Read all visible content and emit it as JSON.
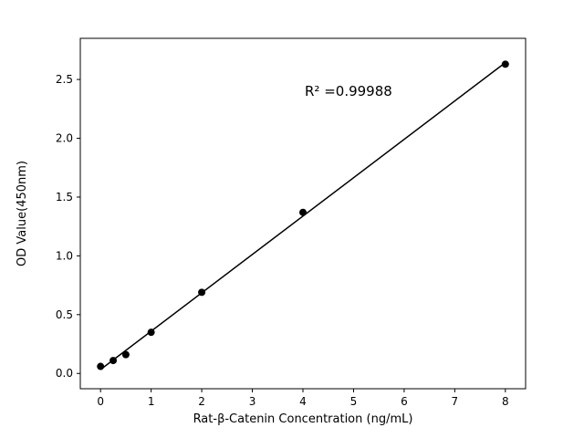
{
  "chart_data": {
    "type": "scatter",
    "title": "",
    "xlabel": "Rat-β-Catenin Concentration (ng/mL)",
    "ylabel": "OD Value(450nm)",
    "x": [
      0,
      0.25,
      0.5,
      1,
      2,
      4,
      8
    ],
    "y": [
      0.06,
      0.11,
      0.16,
      0.35,
      0.69,
      1.37,
      2.63
    ],
    "fit_line": true,
    "annotation": {
      "text": "R² =0.99988",
      "x": 4.9,
      "y": 2.4
    },
    "xlim": [
      -0.4,
      8.4
    ],
    "ylim": [
      -0.13,
      2.85
    ],
    "xticks": [
      0,
      1,
      2,
      3,
      4,
      5,
      6,
      7,
      8
    ],
    "xtick_labels": [
      "0",
      "1",
      "2",
      "3",
      "4",
      "5",
      "6",
      "7",
      "8"
    ],
    "yticks": [
      0.0,
      0.5,
      1.0,
      1.5,
      2.0,
      2.5
    ],
    "ytick_labels": [
      "0.0",
      "0.5",
      "1.0",
      "1.5",
      "2.0",
      "2.5"
    ],
    "legend": null,
    "grid": false,
    "colors": {
      "line": "#000000",
      "marker": "#000000",
      "background": "#ffffff",
      "spine": "#000000"
    }
  }
}
